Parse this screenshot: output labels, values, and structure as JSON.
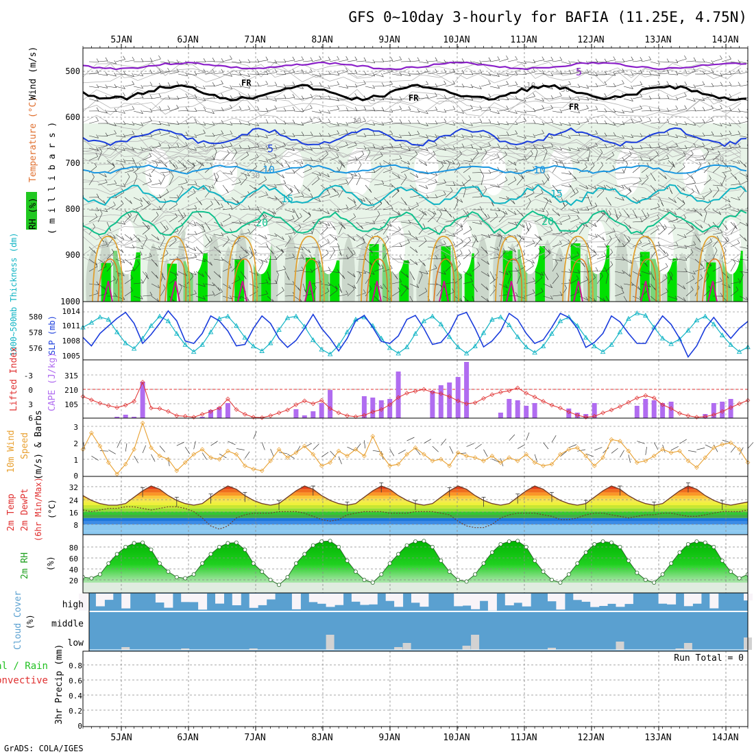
{
  "title": "GFS 0~10day 3-hourly for BAFIA (11.25E, 4.75N)",
  "footer": "GrADS: COLA/IGES",
  "date_labels": [
    "5JAN",
    "6JAN",
    "7JAN",
    "8JAN",
    "9JAN",
    "10JAN",
    "11JAN",
    "12JAN",
    "13JAN",
    "14JAN"
  ],
  "colors": {
    "purple": "#8a1fc8",
    "black": "#000000",
    "blue": "#1a3cdc",
    "sky": "#1a96e0",
    "cyan": "#10b4c4",
    "teal": "#10c08c",
    "orange": "#e0a030",
    "magenta": "#c8148c",
    "cape": "#b06cf0",
    "lifted": "#e03030",
    "wind": "#e8a030",
    "rh": "#1ea01e",
    "cloud": "#5aa0d0",
    "cloud_clear": "#f8f4f8",
    "cloud_bar": "#d2d2d2"
  },
  "panels": {
    "upper": {
      "ylabel_rh": "RH (%)",
      "ylabel_temp": "Temperature (°C)",
      "ylabel_wind": "Wind (m/s)",
      "ylabel_units": "( m i l l i b a r s )",
      "yticks": [
        500,
        600,
        700,
        800,
        900,
        1000
      ],
      "contour_labels": {
        "fr1": "FR",
        "fr2": "FR",
        "fr3": "FR",
        "c5a": "5",
        "c5b": "5",
        "c10a": "10",
        "c10b": "10",
        "c15a": "15",
        "c15b": "15",
        "c20a": "20",
        "c20b": "20",
        "g10": "10",
        "g30": "30",
        "g50": "50",
        "g30b": "30",
        "g10b": "10"
      }
    },
    "slp": {
      "ylabel_left": "1000~500mb Thickness (dm)",
      "ylabel_right": "SLP (mb)",
      "yticks_left": [
        "580",
        "578",
        "576"
      ],
      "yticks_right": [
        "1014",
        "1011",
        "1008",
        "1005"
      ]
    },
    "cape": {
      "ylabel_left": "Lifted Index",
      "ylabel_right": "CAPE (J/kg)",
      "yticks_left": [
        "-3",
        "0",
        "3",
        "6"
      ],
      "yticks_right": [
        "315",
        "210",
        "105"
      ]
    },
    "wind10m": {
      "ylabel_a": "10m Wind",
      "ylabel_b": "Speed",
      "ylabel_c": "(m/s) & Barbs",
      "yticks": [
        "3",
        "2",
        "1",
        "0"
      ]
    },
    "temp2m": {
      "ylabel_a": "2m Temp",
      "ylabel_b": "2m DewPt",
      "ylabel_c": "(6hr Min/Max)",
      "ylabel_d": "(°C)",
      "yticks": [
        "32",
        "24",
        "16",
        "8"
      ]
    },
    "rh2m": {
      "ylabel_a": "2m RH",
      "ylabel_b": "(%)",
      "yticks": [
        "80",
        "60",
        "40",
        "20"
      ]
    },
    "cloud": {
      "ylabel_a": "Cloud Cover",
      "ylabel_b": "(%)",
      "levels": [
        "high",
        "middle",
        "low"
      ]
    },
    "precip": {
      "ylabel_a": "Total / Rain",
      "ylabel_b": "Convective",
      "ylabel_c": "3hr Precip (mm)",
      "yticks": [
        "0.8",
        "0.6",
        "0.4",
        "0.2",
        "0"
      ],
      "run_total": "Run Total = 0"
    }
  },
  "chart_data": [
    {
      "type": "line",
      "name": "Thickness and SLP",
      "x_start": "4JAN 12Z",
      "x_step_hours": 3,
      "series": [
        {
          "name": "1000~500mb Thickness (dm)",
          "values": [
            579.0,
            579.6,
            580.3,
            580.0,
            578.4,
            577.0,
            576.3,
            577.6,
            579.2,
            580.4,
            579.8,
            578.2,
            576.8,
            575.9,
            576.8,
            578.4,
            580.1,
            580.4,
            579.2,
            577.7,
            576.6,
            576.0,
            577.0,
            578.7,
            580.2,
            580.4,
            579.1,
            577.4,
            576.2,
            575.6,
            576.7,
            578.4,
            580.0,
            580.3,
            579.2,
            577.6,
            576.4,
            575.7,
            576.5,
            578.2,
            579.8,
            580.4,
            579.4,
            577.8,
            576.5,
            575.7,
            576.6,
            578.3,
            580.0,
            580.3,
            579.3,
            577.8,
            576.5,
            575.8,
            576.6,
            578.2,
            579.8,
            580.3,
            579.2,
            577.7,
            576.6,
            575.9,
            576.8,
            578.4,
            580.1,
            580.8,
            580.5,
            579.0,
            577.6,
            576.9,
            577.5,
            578.6,
            579.9,
            580.4,
            579.4,
            578.0,
            576.8,
            575.9,
            576.5
          ]
        },
        {
          "name": "SLP (mb)",
          "values": [
            1009.2,
            1007.5,
            1010.0,
            1011.5,
            1013.0,
            1014.2,
            1012.0,
            1008.0,
            1009.8,
            1012.0,
            1014.5,
            1012.5,
            1008.5,
            1008.0,
            1010.0,
            1013.5,
            1012.5,
            1010.5,
            1007.5,
            1007.8,
            1011.0,
            1013.5,
            1012.0,
            1009.0,
            1007.2,
            1008.6,
            1011.0,
            1013.8,
            1011.0,
            1009.0,
            1006.5,
            1009.0,
            1012.5,
            1013.6,
            1011.2,
            1008.4,
            1008.0,
            1009.5,
            1012.8,
            1013.6,
            1011.0,
            1007.8,
            1008.2,
            1010.2,
            1013.6,
            1014.2,
            1011.0,
            1007.3,
            1008.5,
            1010.5,
            1014.0,
            1012.8,
            1010.0,
            1008.0,
            1008.7,
            1011.2,
            1014.0,
            1013.2,
            1011.0,
            1007.2,
            1008.2,
            1010.0,
            1013.5,
            1012.3,
            1010.0,
            1008.0,
            1008.0,
            1011.0,
            1013.5,
            1011.8,
            1009.0,
            1005.3,
            1007.5,
            1011.0,
            1013.2,
            1011.0,
            1009.0,
            1011.0,
            1012.4
          ]
        }
      ]
    },
    {
      "type": "bar",
      "name": "CAPE and Lifted Index",
      "x_start": "4JAN 12Z",
      "x_step_hours": 3,
      "series": [
        {
          "name": "CAPE (J/kg)",
          "values": [
            0,
            0,
            0,
            0,
            10,
            25,
            10,
            265,
            0,
            0,
            0,
            0,
            0,
            0,
            10,
            60,
            80,
            110,
            0,
            0,
            0,
            0,
            0,
            0,
            0,
            65,
            140,
            100,
            125,
            0,
            0,
            0,
            0,
            0,
            0,
            0,
            0,
            0,
            0,
            0,
            0,
            0,
            0,
            0,
            0,
            0,
            0,
            0,
            0,
            0,
            0,
            0,
            0,
            0,
            0,
            0,
            0,
            0,
            0,
            0,
            0,
            0,
            0,
            0,
            0,
            0,
            0,
            0,
            0,
            0,
            0,
            0,
            0,
            0,
            0,
            0,
            0,
            0,
            0
          ]
        },
        {
          "name": "Lifted Index",
          "values": [
            1.5,
            2.2,
            2.9,
            3.4,
            3.8,
            3.3,
            2.5,
            -1.5,
            3.9,
            4.0,
            4.6,
            5.5,
            5.6,
            5.8,
            5.2,
            4.6,
            3.9,
            2.0,
            4.2,
            5.2,
            5.8,
            5.9,
            5.5,
            4.9,
            4.3,
            3.2,
            2.4,
            3.0,
            2.3,
            4.0,
            4.9,
            5.5,
            5.7,
            5.4,
            4.7,
            4.2,
            3.2,
            1.7,
            0.8,
            0.4,
            0.0,
            0.6,
            0.9,
            1.5,
            2.4,
            3.0,
            2.8,
            1.9,
            1.1,
            0.6,
            0.3,
            -0.3,
            0.8,
            1.6,
            2.5,
            3.3,
            3.9,
            4.7,
            5.4,
            5.8,
            5.6,
            4.9,
            4.3,
            3.6,
            2.7,
            1.8,
            1.3,
            1.8,
            3.2,
            4.0,
            5.0,
            5.5,
            5.8,
            5.7,
            5.3,
            4.6,
            3.8,
            3.0,
            2.3
          ]
        }
      ]
    },
    {
      "type": "line",
      "name": "10m Wind Speed",
      "x_start": "4JAN 12Z",
      "x_step_hours": 3,
      "series": [
        {
          "name": "10m Wind Speed (m/s)",
          "values": [
            1.6,
            2.6,
            1.8,
            0.8,
            0.1,
            0.7,
            1.6,
            3.2,
            1.7,
            1.2,
            1.0,
            0.3,
            0.8,
            1.3,
            1.6,
            1.1,
            1.0,
            1.5,
            1.3,
            0.6,
            0.4,
            0.3,
            0.9,
            1.6,
            1.1,
            1.4,
            1.8,
            1.3,
            0.6,
            0.8,
            1.5,
            1.2,
            1.6,
            1.2,
            2.4,
            1.3,
            0.6,
            0.7,
            1.3,
            1.7,
            1.3,
            0.9,
            1.0,
            0.6,
            1.4,
            1.2,
            1.1,
            0.9,
            1.2,
            0.8,
            1.1,
            0.9,
            1.3,
            0.8,
            0.6,
            0.7,
            1.3,
            1.6,
            1.7,
            1.2,
            0.6,
            1.1,
            2.2,
            2.1,
            1.5,
            0.8,
            0.9,
            1.2,
            1.6,
            1.4,
            1.5,
            0.9,
            0.5,
            1.1,
            1.7,
            1.9,
            2.0,
            1.6,
            0.8
          ]
        }
      ]
    },
    {
      "type": "area",
      "name": "2m Temp and DewPt",
      "x_start": "4JAN 12Z",
      "x_step_hours": 3,
      "series": [
        {
          "name": "2m Temp (°C)",
          "values": [
            26,
            23,
            21,
            20,
            20,
            21,
            25,
            29,
            32,
            30,
            26,
            23,
            21,
            20,
            21,
            25,
            29,
            32,
            30,
            26,
            23,
            21,
            20,
            21,
            25,
            29,
            32,
            30,
            26,
            23,
            21,
            20,
            21,
            25,
            29,
            32,
            30,
            26,
            23,
            21,
            20,
            21,
            25,
            29,
            32,
            30,
            26,
            23,
            21,
            20,
            21,
            25,
            29,
            32,
            30,
            26,
            23,
            21,
            20,
            21,
            25,
            29,
            32,
            30,
            26,
            23,
            21,
            20,
            21,
            25,
            29,
            32,
            30,
            26,
            23,
            21,
            20,
            21,
            22
          ]
        },
        {
          "name": "2m DewPt (°C)",
          "values": [
            17,
            16,
            17,
            18,
            18,
            19,
            19,
            18,
            17,
            18,
            19,
            19,
            18,
            16,
            12,
            7,
            5,
            7,
            12,
            14,
            15,
            15,
            15,
            16,
            16,
            16,
            15,
            13,
            11,
            10,
            11,
            14,
            15,
            16,
            16,
            16,
            15,
            15,
            15,
            16,
            16,
            16,
            15,
            14,
            10,
            7,
            6,
            6,
            8,
            12,
            14,
            15,
            15,
            15,
            14,
            13,
            11,
            11,
            12,
            14,
            15,
            15,
            14,
            13,
            12,
            13,
            14,
            14,
            15,
            15,
            14,
            13,
            13,
            14,
            15,
            16,
            16,
            16,
            17
          ]
        }
      ]
    },
    {
      "type": "area",
      "name": "2m RH",
      "x_start": "4JAN 12Z",
      "x_step_hours": 3,
      "series": [
        {
          "name": "2m RH (%)",
          "values": [
            30,
            28,
            35,
            55,
            72,
            85,
            92,
            93,
            80,
            55,
            40,
            30,
            28,
            35,
            55,
            72,
            85,
            92,
            93,
            80,
            55,
            40,
            25,
            16,
            30,
            55,
            72,
            88,
            95,
            96,
            85,
            60,
            40,
            25,
            20,
            35,
            55,
            72,
            88,
            95,
            96,
            85,
            60,
            40,
            25,
            22,
            35,
            55,
            75,
            90,
            95,
            96,
            85,
            60,
            40,
            25,
            20,
            35,
            55,
            75,
            90,
            95,
            93,
            85,
            60,
            38,
            25,
            20,
            35,
            55,
            75,
            90,
            95,
            93,
            85,
            60,
            40,
            28,
            35
          ]
        }
      ]
    }
  ]
}
